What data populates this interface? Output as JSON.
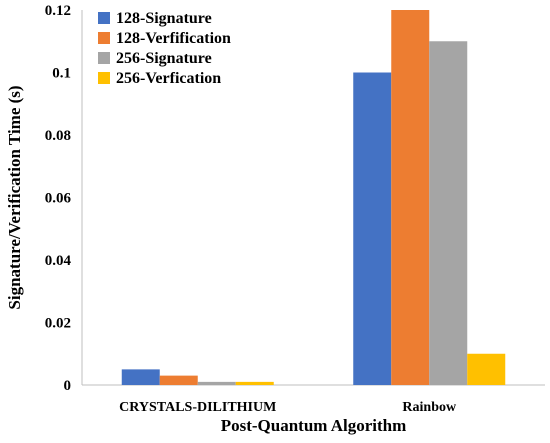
{
  "chart_data": {
    "type": "bar",
    "title": "",
    "xlabel": "Post-Quantum Algorithm",
    "ylabel": "Signature/Verification Time (s)",
    "categories": [
      "CRYSTALS-DILITHIUM",
      "Rainbow"
    ],
    "series": [
      {
        "name": "128-Signature",
        "color": "#4472C4",
        "values": [
          0.005,
          0.1
        ]
      },
      {
        "name": "128-Verfification",
        "color": "#ED7D31",
        "values": [
          0.003,
          0.12
        ]
      },
      {
        "name": "256-Signature",
        "color": "#A5A5A5",
        "values": [
          0.001,
          0.11
        ]
      },
      {
        "name": "256-Verfication",
        "color": "#FFC000",
        "values": [
          0.001,
          0.01
        ]
      }
    ],
    "ylim": [
      0,
      0.12
    ],
    "yticks": [
      0,
      0.02,
      0.04,
      0.06,
      0.08,
      0.1,
      0.12
    ],
    "ytick_labels": [
      "0",
      "0.02",
      "0.04",
      "0.06",
      "0.08",
      "0.1",
      "0.12"
    ],
    "grid": false,
    "legend_position": "top-left"
  }
}
